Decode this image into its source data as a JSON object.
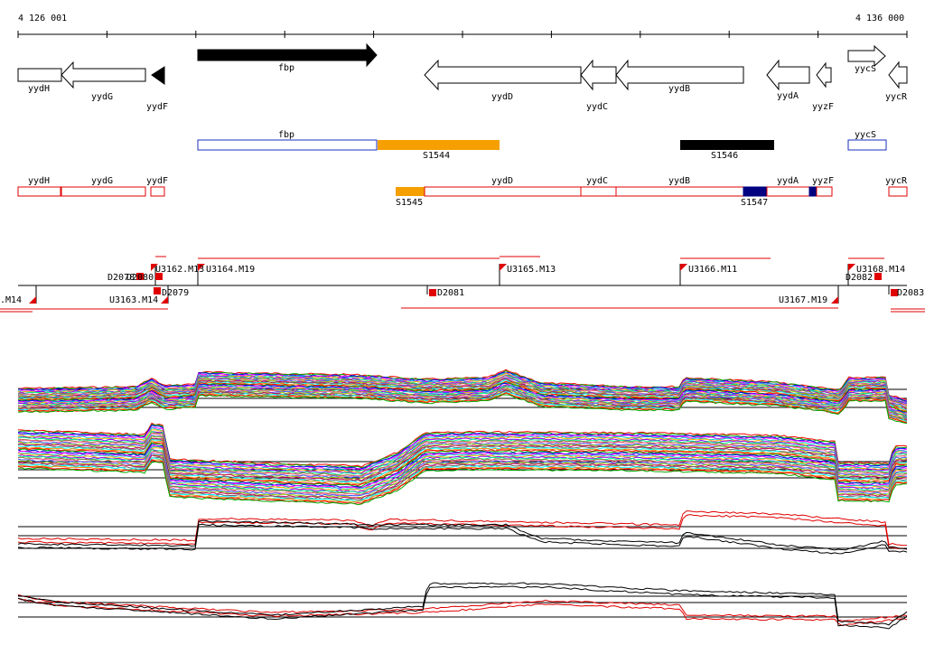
{
  "ruler": {
    "start_label": "4 126 001",
    "end_label": "4 136 000"
  },
  "genes_top": [
    {
      "name": "yydH"
    },
    {
      "name": "yydG"
    },
    {
      "name": "yydF"
    },
    {
      "name": "fbp"
    },
    {
      "name": "yydD"
    },
    {
      "name": "yydC"
    },
    {
      "name": "yydB"
    },
    {
      "name": "yydA"
    },
    {
      "name": "yyzF"
    },
    {
      "name": "yycS"
    },
    {
      "name": "yycR"
    }
  ],
  "features_row1": [
    {
      "name": "fbp",
      "color": "#1a2fbf"
    },
    {
      "name": "S1544",
      "color": "#f5a000"
    },
    {
      "name": "S1546",
      "color": "#000000"
    },
    {
      "name": "yycS",
      "color": "#1a2fbf"
    }
  ],
  "features_row2_labels": {
    "yydH": "yydH",
    "yydG": "yydG",
    "yydF": "yydF",
    "yydD": "yydD",
    "yydC": "yydC",
    "yydB": "yydB",
    "yydA": "yydA",
    "yyzF": "yyzF",
    "yycR": "yycR",
    "S1545": "S1545",
    "S1547": "S1547"
  },
  "transcripts": {
    "upper": [
      "U3164.M19",
      "U3165.M13",
      "U3166.M11",
      "U3168.M14",
      "D2078",
      "D2080",
      "U3162.M13"
    ],
    "lower": [
      ".M14",
      "U3163.M14",
      "D2079",
      "D2081",
      "U3167.M19",
      "D2082",
      "D2083"
    ]
  },
  "colors": {
    "red": "#e00000",
    "orange": "#f5a000",
    "navy": "#000080",
    "blue": "#1a2fbf"
  }
}
